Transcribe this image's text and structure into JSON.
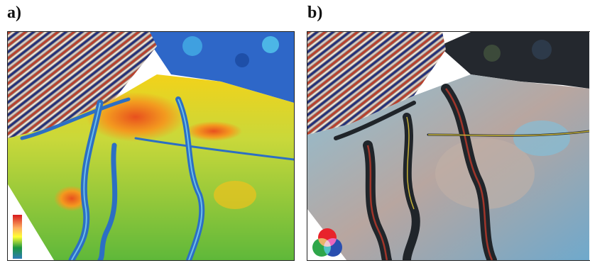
{
  "panels": [
    {
      "label": "a)"
    },
    {
      "label": "b)"
    }
  ],
  "colors": {
    "colorbar_top": "#d7191c",
    "colorbar_mid": "#ffff33",
    "colorbar_low": "#1a9641",
    "colorbar_bottom": "#2c7bb6",
    "rgb_red": "#e8232b",
    "rgb_green": "#2fa64a",
    "rgb_blue": "#2a4fb0"
  }
}
